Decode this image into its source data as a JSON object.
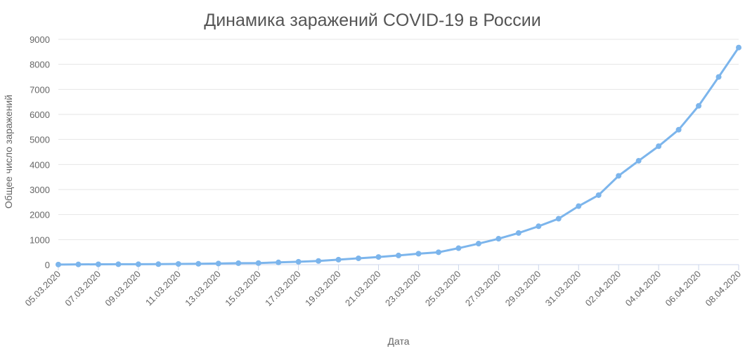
{
  "chart_data": {
    "type": "line",
    "title": "Динамика заражений COVID-19 в России",
    "x_label": "Дата",
    "y_label": "Общее число заражений",
    "categories": [
      "05.03.2020",
      null,
      "07.03.2020",
      null,
      "09.03.2020",
      null,
      "11.03.2020",
      null,
      "13.03.2020",
      null,
      "15.03.2020",
      null,
      "17.03.2020",
      null,
      "19.03.2020",
      null,
      "21.03.2020",
      null,
      "23.03.2020",
      null,
      "25.03.2020",
      null,
      "27.03.2020",
      null,
      "29.03.2020",
      null,
      "31.03.2020",
      null,
      "02.04.2020",
      null,
      "04.04.2020",
      null,
      "06.04.2020",
      null,
      "08.04.2020"
    ],
    "series": [
      {
        "name": "Общее число заражений",
        "color": "#7cb5ec",
        "values": [
          4,
          10,
          14,
          17,
          17,
          20,
          28,
          34,
          45,
          59,
          63,
          90,
          114,
          147,
          199,
          253,
          306,
          367,
          438,
          495,
          658,
          840,
          1036,
          1264,
          1534,
          1836,
          2337,
          2777,
          3548,
          4149,
          4731,
          5389,
          6343,
          7497,
          8672
        ]
      }
    ],
    "ylim": [
      0,
      9000
    ],
    "yticks": [
      0,
      1000,
      2000,
      3000,
      4000,
      5000,
      6000,
      7000,
      8000,
      9000
    ],
    "grid": true
  }
}
